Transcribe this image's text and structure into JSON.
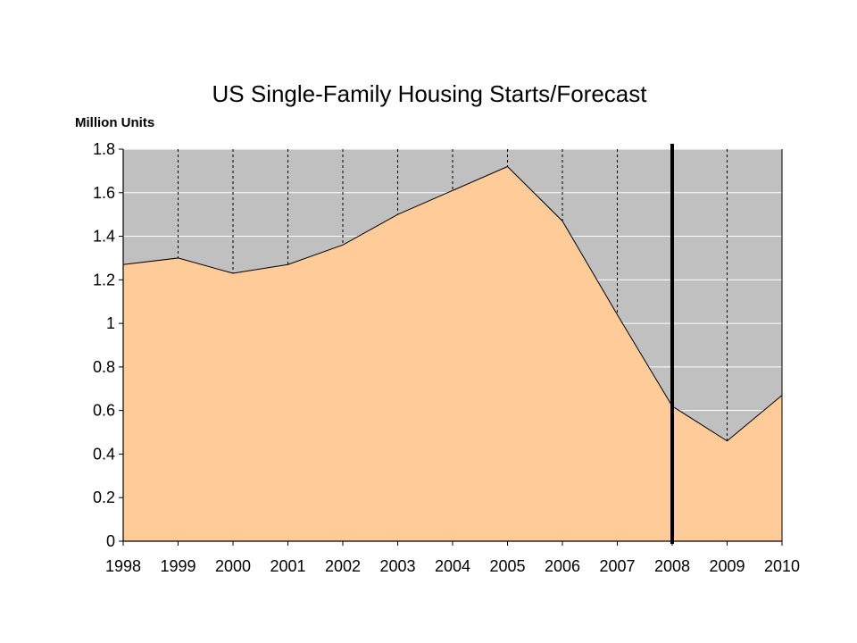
{
  "chart_data": {
    "type": "area",
    "title": "US Single-Family Housing Starts/Forecast",
    "ylabel": "Million Units",
    "xlabel": "",
    "categories": [
      "1998",
      "1999",
      "2000",
      "2001",
      "2002",
      "2003",
      "2004",
      "2005",
      "2006",
      "2007",
      "2008",
      "2009",
      "2010"
    ],
    "values": [
      1.27,
      1.3,
      1.23,
      1.27,
      1.36,
      1.5,
      1.61,
      1.72,
      1.47,
      1.04,
      0.62,
      0.46,
      0.67
    ],
    "ylim": [
      0,
      1.8
    ],
    "yticks": [
      "0",
      "0.2",
      "0.4",
      "0.6",
      "0.8",
      "1",
      "1.2",
      "1.4",
      "1.6",
      "1.8"
    ],
    "ytick_values": [
      0,
      0.2,
      0.4,
      0.6,
      0.8,
      1,
      1.2,
      1.4,
      1.6,
      1.8
    ],
    "marker_line_category": "2008",
    "colors": {
      "fill": "#FFCC99",
      "background": "#C0C0C0",
      "gridline": "#FFFFFF",
      "marker": "#000000"
    },
    "grid": true,
    "legend": "none"
  }
}
